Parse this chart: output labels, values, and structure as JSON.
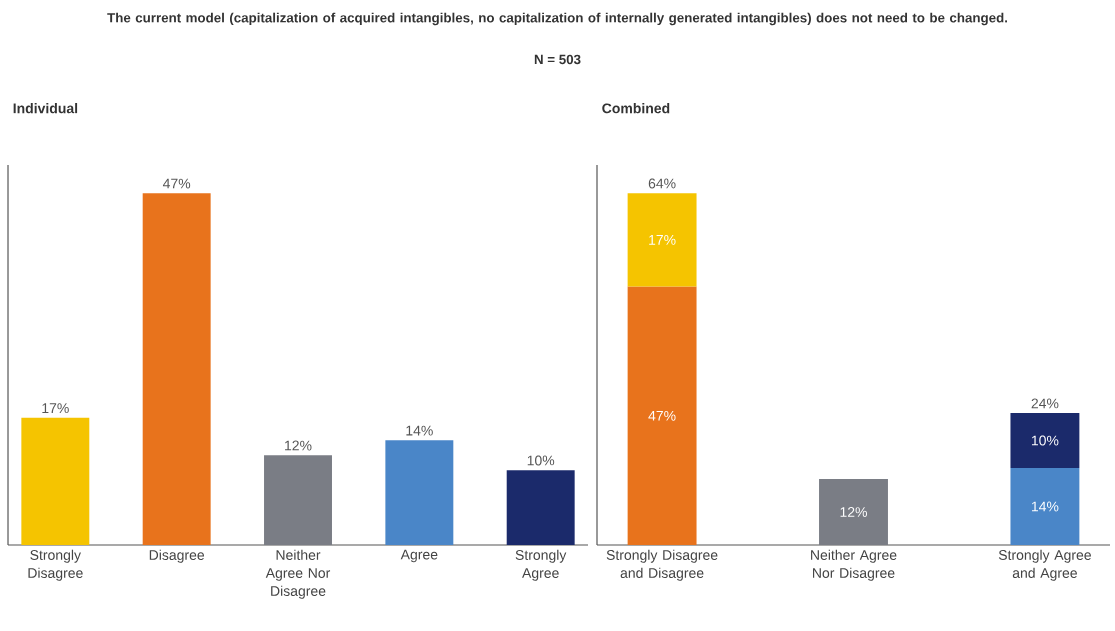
{
  "chart_data": [
    {
      "type": "other",
      "title": "The current model (capitalization of acquired intangibles, no capitalization of internally generated intangibles) does not need to be changed.",
      "subtitle": "N = 503"
    },
    {
      "type": "bar",
      "title": "Individual",
      "categories": [
        "Strongly Disagree",
        "Disagree",
        "Neither Agree Nor Disagree",
        "Agree",
        "Strongly Agree"
      ],
      "values": [
        17,
        47,
        12,
        14,
        10
      ],
      "colors": [
        "#f5c400",
        "#e8731c",
        "#7a7d85",
        "#4a86c8",
        "#1b2a6b"
      ],
      "value_labels": [
        "17%",
        "47%",
        "12%",
        "14%",
        "10%"
      ]
    },
    {
      "type": "bar",
      "title": "Combined",
      "stacked": true,
      "categories": [
        "Strongly Disagree and Disagree",
        "Neither Agree Nor Disagree",
        "Strongly Agree and Agree"
      ],
      "series": [
        {
          "values": [
            47,
            12,
            14
          ],
          "colors": [
            "#e8731c",
            "#7a7d85",
            "#4a86c8"
          ],
          "value_labels": [
            "47%",
            "12%",
            "14%"
          ]
        },
        {
          "values": [
            17,
            null,
            10
          ],
          "colors": [
            "#f5c400",
            null,
            "#1b2a6b"
          ],
          "value_labels": [
            "17%",
            null,
            "10%"
          ]
        }
      ],
      "totals": [
        "64%",
        null,
        "24%"
      ]
    }
  ]
}
